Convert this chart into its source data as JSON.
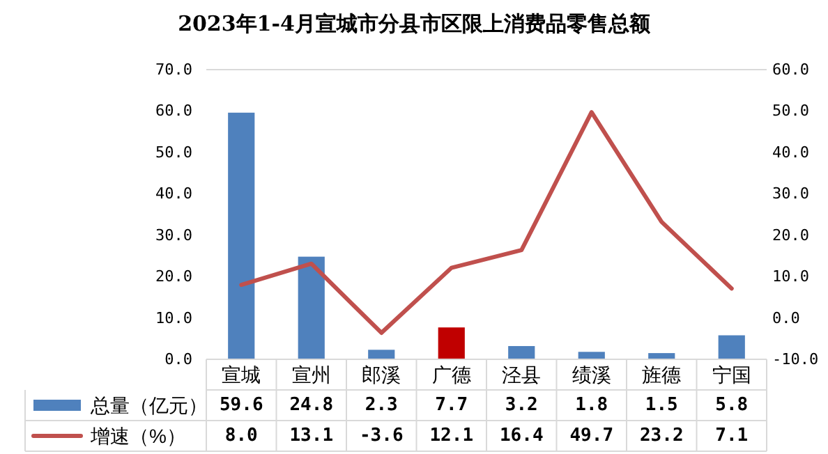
{
  "chart_data": {
    "type": "bar",
    "title": "2023年1-4月宣城市分县市区限上消费品零售总额",
    "categories": [
      "宣城",
      "宣州",
      "郎溪",
      "广德",
      "泾县",
      "绩溪",
      "旌德",
      "宁国"
    ],
    "series": [
      {
        "name": "总量（亿元）",
        "color": "#4f81bd",
        "colors": [
          "#4f81bd",
          "#4f81bd",
          "#4f81bd",
          "#c00000",
          "#4f81bd",
          "#4f81bd",
          "#4f81bd",
          "#4f81bd"
        ],
        "values": [
          59.6,
          24.8,
          2.3,
          7.7,
          3.2,
          1.8,
          1.5,
          5.8
        ],
        "value_labels": [
          "59.6",
          "24.8",
          "2.3",
          "7.7",
          "3.2",
          "1.8",
          "1.5",
          "5.8"
        ]
      },
      {
        "name": "增速（%）",
        "type": "line",
        "axis": "y2",
        "color": "#c0504d",
        "values": [
          8.0,
          13.1,
          -3.6,
          12.1,
          16.4,
          49.7,
          23.2,
          7.1
        ],
        "value_labels": [
          "8.0",
          "13.1",
          "-3.6",
          "12.1",
          "16.4",
          "49.7",
          "23.2",
          "7.1"
        ]
      }
    ],
    "ylim": [
      0,
      70
    ],
    "yticks": [
      {
        "value": 0,
        "label": "0.0"
      },
      {
        "value": 10,
        "label": "10.0"
      },
      {
        "value": 20,
        "label": "20.0"
      },
      {
        "value": 30,
        "label": "30.0"
      },
      {
        "value": 40,
        "label": "40.0"
      },
      {
        "value": 50,
        "label": "50.0"
      },
      {
        "value": 60,
        "label": "60.0"
      },
      {
        "value": 70,
        "label": "70.0"
      }
    ],
    "y2lim": [
      -10,
      60
    ],
    "y2ticks": [
      {
        "value": -10,
        "label": "-10.0"
      },
      {
        "value": 0,
        "label": "0.0"
      },
      {
        "value": 10,
        "label": "10.0"
      },
      {
        "value": 20,
        "label": "20.0"
      },
      {
        "value": 30,
        "label": "30.0"
      },
      {
        "value": 40,
        "label": "40.0"
      },
      {
        "value": 50,
        "label": "50.0"
      },
      {
        "value": 60,
        "label": "60.0"
      }
    ],
    "legend": "bottom left",
    "marker": "none",
    "line_style": "solid"
  }
}
